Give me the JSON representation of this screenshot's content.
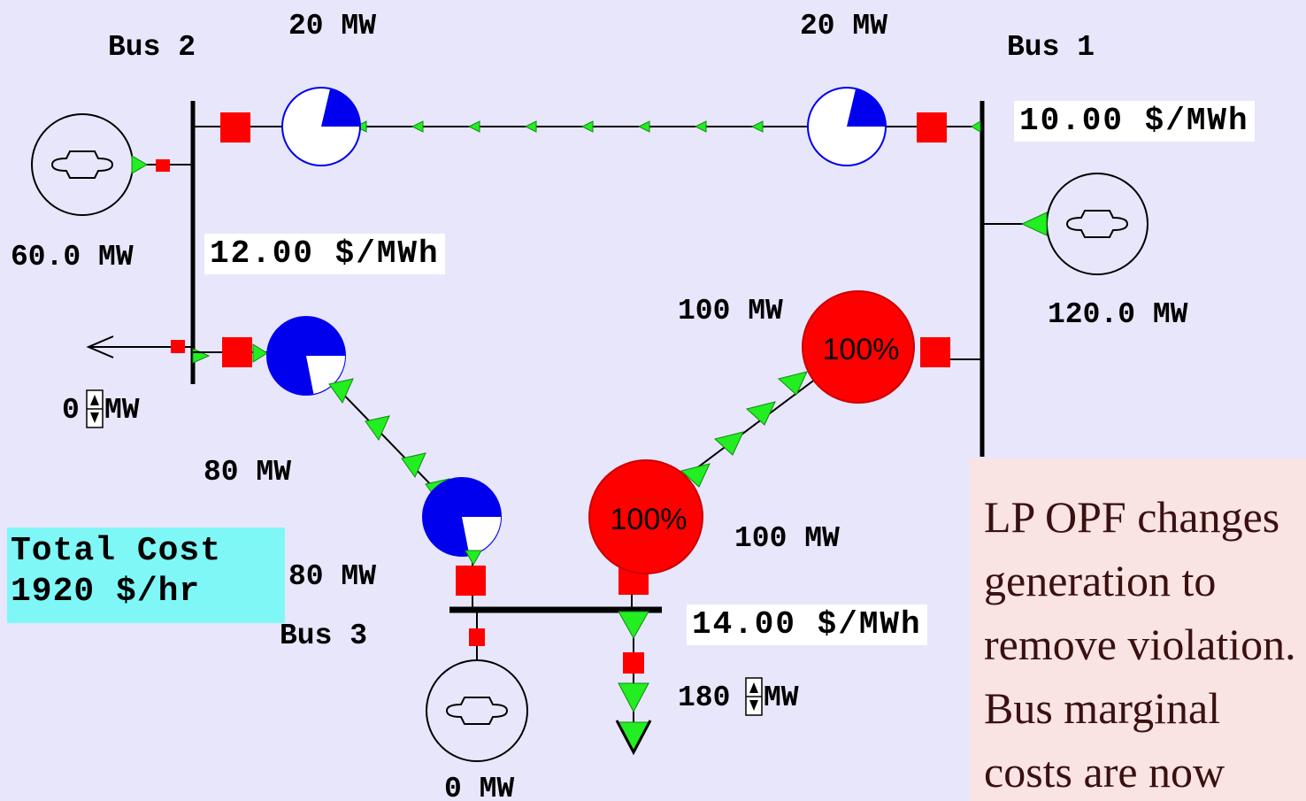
{
  "buses": {
    "bus1": {
      "name": "Bus 1",
      "price": "10.00 $/MWh",
      "generator_output": "120.0 MW"
    },
    "bus2": {
      "name": "Bus 2",
      "price": "12.00 $/MWh",
      "generator_output": "60.0 MW",
      "load": "0",
      "load_unit": "MW"
    },
    "bus3": {
      "name": "Bus 3",
      "price": "14.00 $/MWh",
      "generator_output": "0 MW",
      "load": "180",
      "load_unit": "MW"
    }
  },
  "lines": {
    "line_1_2": {
      "flow_near_bus2": "20 MW",
      "flow_near_bus1": "20 MW"
    },
    "line_2_3": {
      "flow_near_bus2": "80 MW",
      "flow_near_bus3": "80 MW"
    },
    "line_1_3": {
      "flow_near_bus1": "100 MW",
      "flow_near_bus3": "100 MW",
      "loading_bus1_end": "100%",
      "loading_bus3_end": "100%",
      "loading_value": 1.0
    }
  },
  "total_cost": {
    "line1": "Total Cost",
    "line2": "1920 $/hr"
  },
  "note": {
    "lines": [
      "LP OPF changes",
      "generation to",
      "remove violation.",
      "Bus marginal",
      "costs are now"
    ]
  },
  "colors": {
    "background": "#e8e6fa",
    "bus_bar": "#000000",
    "breaker": "#ff0000",
    "flow_arrow": "#22ee22",
    "pie_normal": "#0000ee",
    "pie_overload": "#ff0000",
    "total_cost_bg": "#7ff7f7",
    "note_bg": "#f9e3e3"
  }
}
